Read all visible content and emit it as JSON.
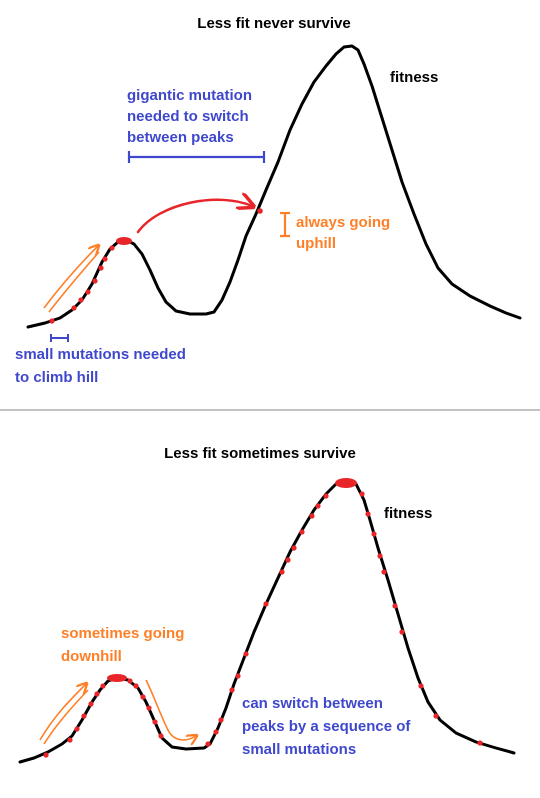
{
  "colors": {
    "curve": "#000000",
    "dot": "#e8262a",
    "blue": "#3f48cc",
    "orange": "#ff7f27",
    "divider": "#c3c3c3",
    "background": "#ffffff"
  },
  "top_panel": {
    "title": "Less fit never survive",
    "fitness_label": "fitness",
    "gigantic_label": {
      "line1": "gigantic mutation",
      "line2": "needed to switch",
      "line3": "between peaks"
    },
    "uphill_label": {
      "line1": "always going",
      "line2": "uphill"
    },
    "small_label": {
      "line1": "small mutations needed",
      "line2": "to climb hill"
    }
  },
  "bottom_panel": {
    "title": "Less fit sometimes survive",
    "fitness_label": "fitness",
    "downhill_label": {
      "line1": "sometimes going",
      "line2": "downhill"
    },
    "switch_label": {
      "line1": "can switch between",
      "line2": "peaks by a sequence of",
      "line3": "small mutations"
    }
  }
}
